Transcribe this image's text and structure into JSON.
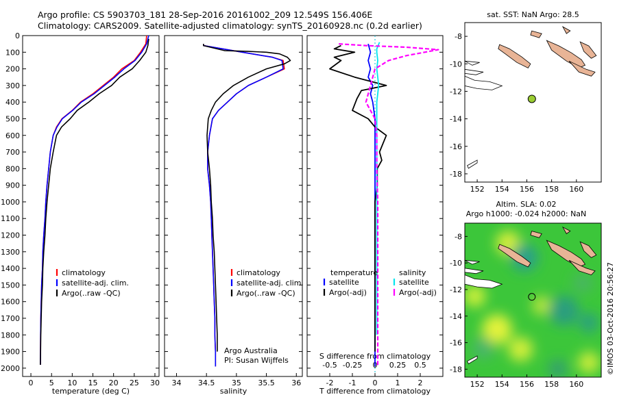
{
  "header": {
    "line1": "Argo profile: CS 5903703_181 28-Sep-2016 20161002_209 12.549S 156.406E",
    "line2": "Climatology: CARS2009. Satellite-adjusted climatology: synTS_20160928.nc (0.2d earlier)"
  },
  "side_text": "©IMOS 03-Oct-2016 20:56:27",
  "colors": {
    "climatology": "#ff0000",
    "satellite": "#0000ff",
    "argo": "#000000",
    "salinity_sat": "#00e5ee",
    "salinity_argo": "#ff00ff",
    "land": "#e8b496",
    "float_marker": "#9acd32"
  },
  "chart_data": [
    {
      "id": "temperature",
      "type": "line",
      "xlabel": "temperature (deg C)",
      "xlim": [
        -2,
        31
      ],
      "xticks": [
        0,
        5,
        10,
        15,
        20,
        25,
        30
      ],
      "ylim": [
        2050,
        0
      ],
      "yticks": [
        0,
        100,
        200,
        300,
        400,
        500,
        600,
        700,
        800,
        900,
        1000,
        1100,
        1200,
        1300,
        1400,
        1500,
        1600,
        1700,
        1800,
        1900,
        2000
      ],
      "legend": [
        "climatology",
        "satellite-adj. clim.",
        "Argo(..raw -QC)"
      ],
      "series": [
        {
          "name": "climatology",
          "color": "#ff0000",
          "x": [
            28,
            27.8,
            26.5,
            25,
            22,
            20,
            17.5,
            15,
            12,
            10,
            7.5,
            6.2,
            5.4,
            4.7,
            4.3,
            3.9,
            3.6,
            3.4,
            3.1,
            2.9,
            2.8,
            2.6,
            2.5,
            2.4,
            2.35,
            2.3
          ],
          "y": [
            0,
            50,
            100,
            150,
            200,
            250,
            300,
            350,
            400,
            450,
            500,
            550,
            600,
            700,
            800,
            900,
            1000,
            1100,
            1200,
            1300,
            1400,
            1500,
            1600,
            1700,
            1800,
            1980
          ]
        },
        {
          "name": "satellite-adj. clim.",
          "color": "#0000ff",
          "x": [
            28.5,
            28,
            26.8,
            25.2,
            22.5,
            20.3,
            17.8,
            15.3,
            12.2,
            10.1,
            7.6,
            6.3,
            5.4,
            4.7,
            4.3,
            3.9,
            3.6,
            3.4,
            3.1,
            2.9,
            2.8,
            2.6,
            2.5,
            2.4,
            2.35,
            2.3
          ],
          "y": [
            0,
            50,
            100,
            150,
            200,
            250,
            300,
            350,
            400,
            450,
            500,
            550,
            600,
            700,
            800,
            900,
            1000,
            1100,
            1200,
            1300,
            1400,
            1500,
            1600,
            1700,
            1800,
            1980
          ]
        },
        {
          "name": "Argo(..raw -QC)",
          "color": "#000000",
          "x": [
            28.5,
            28.3,
            27.8,
            26.3,
            24.5,
            21.5,
            19.5,
            16.5,
            14,
            11.2,
            9.5,
            7.4,
            6.2,
            5.4,
            4.7,
            4.3,
            3.9,
            3.6,
            3.4,
            3.1,
            2.9,
            2.8,
            2.6,
            2.5,
            2.4,
            2.35,
            2.3
          ],
          "y": [
            20,
            60,
            100,
            150,
            200,
            250,
            300,
            350,
            400,
            450,
            500,
            550,
            600,
            700,
            800,
            900,
            1000,
            1100,
            1200,
            1300,
            1400,
            1500,
            1600,
            1700,
            1800,
            1900,
            1980
          ]
        }
      ]
    },
    {
      "id": "salinity",
      "type": "line",
      "xlabel": "salinity",
      "xlim": [
        33.8,
        36.1
      ],
      "xticks": [
        34,
        34.5,
        35,
        35.5,
        36
      ],
      "ylim": [
        2050,
        0
      ],
      "legend": [
        "climatology",
        "satellite-adj. clim.",
        "Argo(..raw -QC)"
      ],
      "annotation": [
        "Argo Australia",
        "PI: Susan Wijffels"
      ],
      "series": [
        {
          "name": "climatology",
          "color": "#ff0000",
          "x": [
            34.45,
            34.45,
            35.1,
            35.6,
            35.78,
            35.8,
            35.5,
            35.2,
            35,
            34.85,
            34.7,
            34.6,
            34.55,
            34.52,
            34.52,
            34.55,
            34.57,
            34.58,
            34.59,
            34.6,
            34.61,
            34.62,
            34.63,
            34.64,
            34.64,
            34.65,
            34.65
          ],
          "y": [
            50,
            60,
            100,
            130,
            150,
            200,
            250,
            300,
            350,
            400,
            450,
            500,
            600,
            700,
            800,
            900,
            1000,
            1100,
            1200,
            1300,
            1400,
            1500,
            1600,
            1700,
            1800,
            1900,
            1990
          ]
        },
        {
          "name": "satellite-adj. clim.",
          "color": "#0000ff",
          "x": [
            34.45,
            34.45,
            35.1,
            35.6,
            35.76,
            35.78,
            35.5,
            35.2,
            35,
            34.85,
            34.7,
            34.6,
            34.55,
            34.52,
            34.52,
            34.55,
            34.57,
            34.58,
            34.59,
            34.6,
            34.61,
            34.62,
            34.63,
            34.64,
            34.64,
            34.65,
            34.65
          ],
          "y": [
            50,
            60,
            100,
            130,
            150,
            200,
            250,
            300,
            350,
            400,
            450,
            500,
            600,
            700,
            800,
            900,
            1000,
            1100,
            1200,
            1300,
            1400,
            1500,
            1600,
            1700,
            1800,
            1900,
            1990
          ]
        },
        {
          "name": "Argo(..raw -QC)",
          "color": "#000000",
          "x": [
            34.45,
            34.45,
            34.8,
            35.2,
            35.5,
            35.72,
            35.85,
            35.9,
            35.8,
            35.5,
            35.2,
            34.95,
            34.78,
            34.65,
            34.58,
            34.53,
            34.51,
            34.52,
            34.55,
            34.57,
            34.58,
            34.6,
            34.61,
            34.63,
            34.64,
            34.65,
            34.66,
            34.67,
            34.68,
            34.68
          ],
          "y": [
            50,
            60,
            90,
            95,
            100,
            110,
            130,
            150,
            170,
            200,
            250,
            300,
            350,
            400,
            450,
            500,
            600,
            700,
            800,
            900,
            1000,
            1100,
            1200,
            1300,
            1400,
            1500,
            1600,
            1700,
            1800,
            1900
          ]
        }
      ]
    },
    {
      "id": "difference",
      "type": "line",
      "xlabel": "T difference from climatology",
      "xlabel_top": "S difference from climatology",
      "xlim": [
        -3,
        3
      ],
      "xticks": [
        -2,
        -1,
        0,
        1,
        2
      ],
      "xticks_top": [
        -0.5,
        -0.25,
        0,
        0.25,
        0.5
      ],
      "xtick_top_labels": [
        "-0.5",
        "-0.25",
        "0",
        "0.25",
        "0.5"
      ],
      "ylim": [
        2050,
        0
      ],
      "legend_left_title": "temperature",
      "legend_right_title": "salinity",
      "legend": [
        "satellite",
        "Argo(-adj)",
        "satellite",
        "Argo(-adj)"
      ],
      "series": [
        {
          "name": "T satellite",
          "color": "#0000ff",
          "x": [
            -0.3,
            -0.2,
            -0.3,
            -0.2,
            -0.3,
            -0.1,
            -0.2,
            -0.1,
            0,
            0,
            0,
            0,
            0,
            0,
            0,
            0,
            0
          ],
          "y": [
            50,
            100,
            150,
            200,
            250,
            300,
            350,
            400,
            500,
            600,
            800,
            1000,
            1200,
            1400,
            1600,
            1800,
            1990
          ]
        },
        {
          "name": "T Argo(-adj)",
          "color": "#000000",
          "x": [
            -1.5,
            -1.8,
            -0.9,
            -1.8,
            -1.5,
            -2,
            -0.9,
            0.5,
            -0.6,
            -0.8,
            -1,
            -0.3,
            0,
            0.5,
            0.2,
            0.3,
            0.1,
            0.1,
            0,
            0,
            0
          ],
          "y": [
            60,
            80,
            100,
            130,
            150,
            200,
            250,
            300,
            330,
            380,
            450,
            500,
            550,
            600,
            700,
            750,
            800,
            900,
            1000,
            1500,
            1900
          ]
        },
        {
          "name": "S satellite",
          "color": "#00e5ee",
          "x": [
            0.05,
            0.02,
            0.02,
            0.03,
            0.02,
            0.03,
            0.04,
            0.03,
            0.02,
            0.02,
            0.02,
            0.02,
            0.02,
            0.02,
            0.02,
            0.02,
            0.02
          ],
          "y": [
            40,
            80,
            100,
            150,
            200,
            250,
            300,
            350,
            400,
            500,
            600,
            800,
            1000,
            1200,
            1400,
            1600,
            1800
          ]
        },
        {
          "name": "S Argo(-adj)",
          "color": "#ff00ff",
          "x": [
            -0.4,
            -0.1,
            0.35,
            0.7,
            0.35,
            0.15,
            0,
            -0.05,
            -0.1,
            -0.05,
            0,
            0.02,
            0.02,
            0.02,
            0.03,
            0.03,
            0.03,
            0.03,
            0.03,
            0.03
          ],
          "y": [
            50,
            60,
            70,
            85,
            120,
            150,
            200,
            300,
            400,
            450,
            500,
            600,
            700,
            800,
            1000,
            1200,
            1400,
            1600,
            1800,
            1990
          ]
        }
      ]
    },
    {
      "id": "map_sst",
      "type": "scatter",
      "title": "sat. SST: NaN Argo: 28.5",
      "xlim": [
        151,
        162
      ],
      "ylim": [
        -18.6,
        -7
      ],
      "xticks": [
        152,
        154,
        156,
        158,
        160
      ],
      "yticks": [
        -8,
        -10,
        -12,
        -14,
        -16,
        -18
      ],
      "points": [
        {
          "lon": 156.406,
          "lat": -12.549
        }
      ]
    },
    {
      "id": "map_sla",
      "type": "heatmap",
      "title_line1": "Altim. SLA: 0.02",
      "title_line2": "Argo h1000: -0.024 h2000: NaN",
      "xlim": [
        151,
        162
      ],
      "ylim": [
        -18.6,
        -7
      ],
      "xticks": [
        152,
        154,
        156,
        158,
        160
      ],
      "yticks": [
        -8,
        -10,
        -12,
        -14,
        -16,
        -18
      ],
      "points": [
        {
          "lon": 156.406,
          "lat": -12.549
        }
      ]
    }
  ]
}
